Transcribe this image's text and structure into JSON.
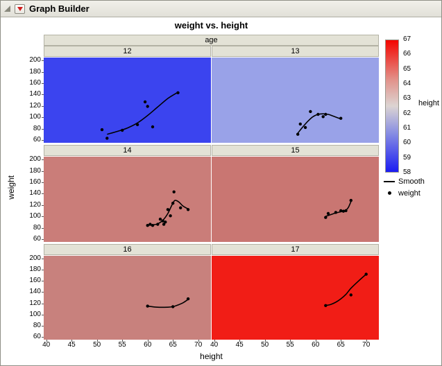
{
  "window": {
    "title": "Graph Builder"
  },
  "chart_data": {
    "type": "scatter",
    "title": "weight vs. height",
    "facet_label": "age",
    "xlabel": "height",
    "ylabel": "weight",
    "x_ticks": [
      40,
      45,
      50,
      55,
      60,
      65,
      70
    ],
    "y_ticks": [
      200,
      180,
      160,
      140,
      120,
      100,
      80,
      60
    ],
    "x_range": [
      39.5,
      72.5
    ],
    "y_range": [
      55,
      205
    ],
    "grid": false,
    "point_color": "#000000",
    "smooth_color": "#000000",
    "panels": [
      {
        "age": "12",
        "panel_color": "#3b44ef",
        "points": [
          [
            51,
            78
          ],
          [
            52,
            63
          ],
          [
            55,
            77
          ],
          [
            58,
            87
          ],
          [
            59.5,
            127
          ],
          [
            60,
            119
          ],
          [
            61,
            83
          ],
          [
            66,
            143
          ]
        ],
        "smooth": [
          [
            52,
            70
          ],
          [
            54,
            75
          ],
          [
            56,
            81
          ],
          [
            58,
            90
          ],
          [
            60,
            103
          ],
          [
            62,
            118
          ],
          [
            64,
            133
          ],
          [
            66,
            144
          ]
        ]
      },
      {
        "age": "13",
        "panel_color": "#99a2e8",
        "points": [
          [
            56.5,
            70
          ],
          [
            57,
            88
          ],
          [
            58,
            82
          ],
          [
            59,
            110
          ],
          [
            60.5,
            105
          ],
          [
            61.5,
            101
          ],
          [
            62,
            105
          ],
          [
            65,
            98
          ]
        ],
        "smooth": [
          [
            56.5,
            72
          ],
          [
            57.5,
            83
          ],
          [
            58.5,
            93
          ],
          [
            59.5,
            101
          ],
          [
            60.5,
            105
          ],
          [
            61.5,
            106
          ],
          [
            62.5,
            105
          ],
          [
            63.5,
            102
          ],
          [
            65,
            97
          ]
        ]
      },
      {
        "age": "14",
        "panel_color": "#ca7d79",
        "points": [
          [
            60,
            84
          ],
          [
            60.5,
            86
          ],
          [
            61,
            84
          ],
          [
            62,
            86
          ],
          [
            62.5,
            95
          ],
          [
            63,
            92
          ],
          [
            63.2,
            86
          ],
          [
            63.5,
            90
          ],
          [
            64,
            112
          ],
          [
            64.5,
            101
          ],
          [
            65,
            123
          ],
          [
            65.2,
            143
          ],
          [
            66.5,
            115
          ],
          [
            68,
            112
          ]
        ],
        "smooth": [
          [
            60,
            85
          ],
          [
            61,
            85
          ],
          [
            62,
            87
          ],
          [
            63,
            93
          ],
          [
            64,
            105
          ],
          [
            64.8,
            120
          ],
          [
            65.4,
            128
          ],
          [
            66.2,
            125
          ],
          [
            67,
            118
          ],
          [
            68,
            113
          ]
        ]
      },
      {
        "age": "15",
        "panel_color": "#c97672",
        "points": [
          [
            62,
            98
          ],
          [
            62.5,
            105
          ],
          [
            64,
            107
          ],
          [
            65,
            110
          ],
          [
            65.5,
            109
          ],
          [
            66,
            110
          ],
          [
            67,
            128
          ]
        ],
        "smooth": [
          [
            62,
            100
          ],
          [
            63,
            103
          ],
          [
            64,
            106
          ],
          [
            65,
            108
          ],
          [
            66,
            111
          ],
          [
            66.5,
            116
          ],
          [
            67,
            126
          ]
        ]
      },
      {
        "age": "16",
        "panel_color": "#c8817d",
        "points": [
          [
            60,
            115
          ],
          [
            65,
            114
          ],
          [
            68,
            128
          ]
        ],
        "smooth": [
          [
            60,
            115
          ],
          [
            62,
            113
          ],
          [
            64,
            113
          ],
          [
            65,
            114
          ],
          [
            66,
            117
          ],
          [
            67,
            121
          ],
          [
            68,
            127
          ]
        ]
      },
      {
        "age": "17",
        "panel_color": "#f11d16",
        "points": [
          [
            62,
            116
          ],
          [
            67,
            135
          ],
          [
            70,
            172
          ]
        ],
        "smooth": [
          [
            62,
            116
          ],
          [
            63,
            118
          ],
          [
            64,
            122
          ],
          [
            65,
            128
          ],
          [
            66,
            136
          ],
          [
            67,
            147
          ],
          [
            68.5,
            160
          ],
          [
            70,
            172
          ]
        ]
      }
    ],
    "legend": {
      "gradient_title": "height",
      "gradient_ticks": [
        67,
        66,
        65,
        64,
        63,
        62,
        61,
        60,
        59,
        58
      ],
      "gradient_stops": [
        [
          "0%",
          "#f40500"
        ],
        [
          "30%",
          "#e2928a"
        ],
        [
          "50%",
          "#dcd4d2"
        ],
        [
          "70%",
          "#8a90e2"
        ],
        [
          "100%",
          "#1a1cf2"
        ]
      ],
      "entries": [
        {
          "glyph": "line",
          "label": "Smooth"
        },
        {
          "glyph": "dot",
          "label": "weight"
        }
      ]
    }
  }
}
